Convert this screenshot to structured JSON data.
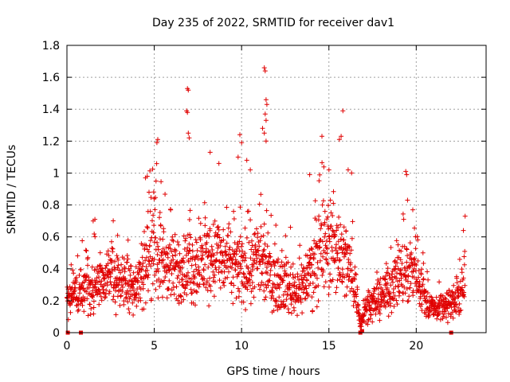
{
  "chart_data": {
    "type": "scatter",
    "title": "Day 235 of 2022, SRMTID for receiver dav1",
    "xlabel": "GPS time / hours",
    "ylabel": "SRMTID / TECUs",
    "xlim": [
      0,
      24
    ],
    "ylim": [
      0,
      1.8
    ],
    "xticks": [
      0,
      5,
      10,
      15,
      20
    ],
    "xtick_labels": [
      "0",
      "5",
      "10",
      "15",
      "20"
    ],
    "yticks": [
      0,
      0.2,
      0.4,
      0.6,
      0.8,
      1,
      1.2,
      1.4,
      1.6,
      1.8
    ],
    "ytick_labels": [
      "0",
      "0.2",
      "0.4",
      "0.6",
      "0.8",
      "1",
      "1.2",
      "1.4",
      "1.6",
      "1.8"
    ],
    "grid": true,
    "marker": "plus",
    "color": "#e00000",
    "series": [
      {
        "name": "SRMTID",
        "trend": [
          [
            0.0,
            0.18
          ],
          [
            0.5,
            0.25
          ],
          [
            1.0,
            0.3
          ],
          [
            1.5,
            0.3
          ],
          [
            2.0,
            0.32
          ],
          [
            2.5,
            0.35
          ],
          [
            3.0,
            0.32
          ],
          [
            3.5,
            0.33
          ],
          [
            4.0,
            0.3
          ],
          [
            4.5,
            0.45
          ],
          [
            5.0,
            0.55
          ],
          [
            5.5,
            0.45
          ],
          [
            6.0,
            0.38
          ],
          [
            6.5,
            0.4
          ],
          [
            7.0,
            0.4
          ],
          [
            7.5,
            0.42
          ],
          [
            8.0,
            0.45
          ],
          [
            8.5,
            0.48
          ],
          [
            9.0,
            0.45
          ],
          [
            9.5,
            0.42
          ],
          [
            10.0,
            0.4
          ],
          [
            10.5,
            0.42
          ],
          [
            11.0,
            0.45
          ],
          [
            11.5,
            0.38
          ],
          [
            12.0,
            0.32
          ],
          [
            12.5,
            0.3
          ],
          [
            13.0,
            0.26
          ],
          [
            13.5,
            0.3
          ],
          [
            14.0,
            0.4
          ],
          [
            14.5,
            0.5
          ],
          [
            15.0,
            0.55
          ],
          [
            15.5,
            0.52
          ],
          [
            16.0,
            0.45
          ],
          [
            16.5,
            0.3
          ],
          [
            16.8,
            0.05
          ],
          [
            17.0,
            0.15
          ],
          [
            17.5,
            0.18
          ],
          [
            18.0,
            0.22
          ],
          [
            18.5,
            0.3
          ],
          [
            19.0,
            0.35
          ],
          [
            19.5,
            0.38
          ],
          [
            20.0,
            0.42
          ],
          [
            20.5,
            0.2
          ],
          [
            21.0,
            0.15
          ],
          [
            21.5,
            0.17
          ],
          [
            22.0,
            0.18
          ],
          [
            22.5,
            0.22
          ],
          [
            22.8,
            0.3
          ]
        ],
        "spikes": [
          [
            5.2,
            1.21
          ],
          [
            5.15,
            1.19
          ],
          [
            6.9,
            1.53
          ],
          [
            6.95,
            1.52
          ],
          [
            6.85,
            1.39
          ],
          [
            6.9,
            1.38
          ],
          [
            6.95,
            1.25
          ],
          [
            7.0,
            1.22
          ],
          [
            8.2,
            1.13
          ],
          [
            9.9,
            1.24
          ],
          [
            10.0,
            1.19
          ],
          [
            11.3,
            1.66
          ],
          [
            11.35,
            1.64
          ],
          [
            11.4,
            1.46
          ],
          [
            11.45,
            1.43
          ],
          [
            11.35,
            1.37
          ],
          [
            11.4,
            1.33
          ],
          [
            11.2,
            1.28
          ],
          [
            11.3,
            1.25
          ],
          [
            11.4,
            1.2
          ],
          [
            14.6,
            1.23
          ],
          [
            15.8,
            1.39
          ],
          [
            15.7,
            1.23
          ],
          [
            15.6,
            1.21
          ],
          [
            19.4,
            1.01
          ],
          [
            19.45,
            0.99
          ],
          [
            19.5,
            0.83
          ],
          [
            4.5,
            0.97
          ],
          [
            4.6,
            0.98
          ],
          [
            4.7,
            0.88
          ],
          [
            5.1,
            0.95
          ],
          [
            1.5,
            0.7
          ],
          [
            1.6,
            0.71
          ],
          [
            3.5,
            0.58
          ],
          [
            2.9,
            0.61
          ],
          [
            8.7,
            1.06
          ],
          [
            9.8,
            1.1
          ],
          [
            10.3,
            1.08
          ],
          [
            10.5,
            1.02
          ],
          [
            12.8,
            0.66
          ],
          [
            13.9,
            0.99
          ],
          [
            15.0,
            1.02
          ],
          [
            16.1,
            1.02
          ],
          [
            16.3,
            1.0
          ],
          [
            19.8,
            0.77
          ],
          [
            22.8,
            0.73
          ],
          [
            22.7,
            0.64
          ]
        ],
        "low_points": [
          [
            0.05,
            0.0
          ],
          [
            0.8,
            0.0
          ],
          [
            16.8,
            0.0
          ],
          [
            16.9,
            0.01
          ],
          [
            22.0,
            0.0
          ]
        ]
      }
    ]
  }
}
